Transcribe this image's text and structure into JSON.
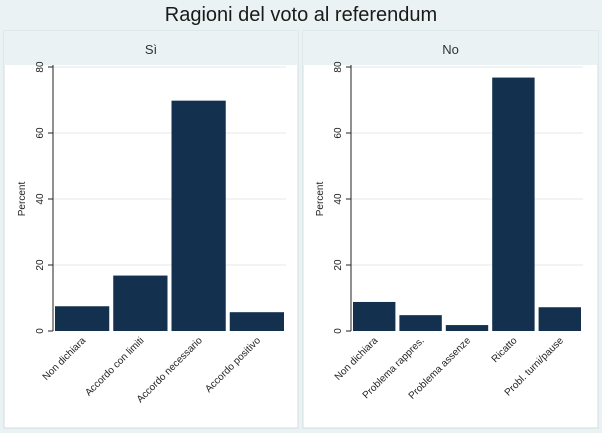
{
  "title": "Ragioni del voto al referendum",
  "chart_data": [
    {
      "type": "bar",
      "title": "Sì",
      "ylabel": "Percent",
      "xlabel": "",
      "ylim": [
        0,
        80
      ],
      "yticks": [
        0,
        20,
        40,
        60,
        80
      ],
      "grid": true,
      "categories": [
        "Non dichiara",
        "Accordo con limiti",
        "Accordo necessario",
        "Accordo positivo"
      ],
      "values": [
        7.5,
        16.8,
        69.8,
        5.7
      ],
      "bar_color": "#14304f"
    },
    {
      "type": "bar",
      "title": "No",
      "ylabel": "Percent",
      "xlabel": "",
      "ylim": [
        0,
        80
      ],
      "yticks": [
        0,
        20,
        40,
        60,
        80
      ],
      "grid": true,
      "categories": [
        "Non dichiara",
        "Problema rappres.",
        "Problema assenze",
        "Ricatto",
        "Probl. turni/pause"
      ],
      "values": [
        8.8,
        4.8,
        1.8,
        76.8,
        7.2
      ],
      "bar_color": "#14304f"
    }
  ]
}
